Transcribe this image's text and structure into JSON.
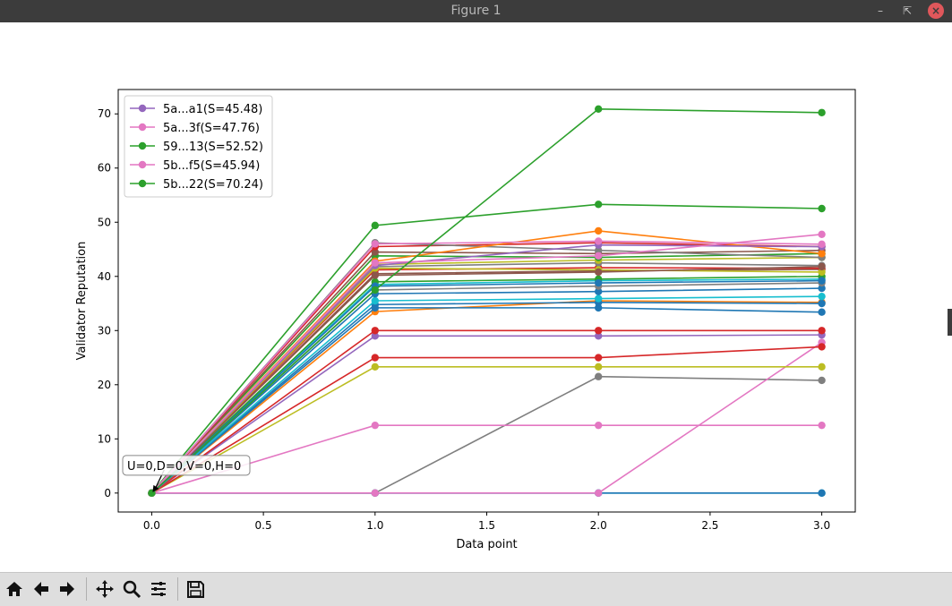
{
  "window": {
    "title": "Figure 1",
    "controls": [
      "minimize-icon",
      "restore-icon",
      "close-icon"
    ]
  },
  "toolbar": {
    "buttons": [
      "home-icon",
      "back-arrow-icon",
      "forward-arrow-icon",
      "pan-icon",
      "zoom-icon",
      "configure-subplots-icon",
      "save-icon"
    ]
  },
  "chart_data": {
    "type": "line",
    "xlabel": "Data point",
    "ylabel": "Validator Reputation",
    "xlim": [
      -0.15,
      3.15
    ],
    "ylim": [
      -3.5,
      74.5
    ],
    "xticks": [
      0.0,
      0.5,
      1.0,
      1.5,
      2.0,
      2.5,
      3.0
    ],
    "yticks": [
      0,
      10,
      20,
      30,
      40,
      50,
      60,
      70
    ],
    "xtick_labels": [
      "0.0",
      "0.5",
      "1.0",
      "1.5",
      "2.0",
      "2.5",
      "3.0"
    ],
    "ytick_labels": [
      "0",
      "10",
      "20",
      "30",
      "40",
      "50",
      "60",
      "70"
    ],
    "x": [
      0,
      1,
      2,
      3
    ],
    "legend_placement": "upper-left",
    "annotation": {
      "text": "U=0,D=0,V=0,H=0",
      "x": 0,
      "y": 0
    },
    "series": [
      {
        "values": [
          0,
          0,
          0,
          0
        ],
        "color": "#17becf"
      },
      {
        "values": [
          0,
          0,
          0,
          0
        ],
        "color": "#1f77b4"
      },
      {
        "values": [
          0,
          0,
          21.5,
          20.8
        ],
        "color": "#7f7f7f"
      },
      {
        "values": [
          0,
          12.5,
          12.5,
          12.5
        ],
        "color": "#e377c2"
      },
      {
        "values": [
          0,
          0,
          0,
          27.8
        ],
        "color": "#e377c2"
      },
      {
        "values": [
          0,
          23.3,
          23.3,
          23.3
        ],
        "color": "#bcbd22"
      },
      {
        "values": [
          0,
          25,
          25,
          27
        ],
        "color": "#d62728"
      },
      {
        "values": [
          0,
          29,
          29,
          29.2
        ],
        "color": "#9467bd"
      },
      {
        "values": [
          0,
          30,
          30,
          30
        ],
        "color": "#d62728"
      },
      {
        "values": [
          0,
          33.5,
          35.5,
          35.2
        ],
        "color": "#ff7f0e"
      },
      {
        "values": [
          0,
          34.2,
          34.2,
          33.4
        ],
        "color": "#1f77b4"
      },
      {
        "values": [
          0,
          34.8,
          35.2,
          35
        ],
        "color": "#1f77b4"
      },
      {
        "values": [
          0,
          35.5,
          35.9,
          36.3
        ],
        "color": "#17becf"
      },
      {
        "values": [
          0,
          36.8,
          37.2,
          37.8
        ],
        "color": "#1f77b4"
      },
      {
        "values": [
          0,
          37.5,
          38.2,
          38.8
        ],
        "color": "#7f7f7f"
      },
      {
        "values": [
          0,
          38.5,
          39.2,
          39.5
        ],
        "color": "#17becf"
      },
      {
        "values": [
          0,
          39,
          39.5,
          40
        ],
        "color": "#2ca02c"
      },
      {
        "values": [
          0,
          40.5,
          41,
          41.3
        ],
        "color": "#8c564b"
      },
      {
        "values": [
          0,
          41.2,
          41.6,
          41.5
        ],
        "color": "#d62728"
      },
      {
        "values": [
          0,
          41.8,
          42.5,
          42
        ],
        "color": "#7f7f7f"
      },
      {
        "values": [
          0,
          42.2,
          43,
          43.5
        ],
        "color": "#bcbd22"
      },
      {
        "values": [
          0,
          43.8,
          43.5,
          44.2
        ],
        "color": "#2ca02c"
      },
      {
        "values": [
          0,
          44.5,
          44.2,
          44.8
        ],
        "color": "#8c564b"
      },
      {
        "values": [
          0,
          45.5,
          46.2,
          45.5
        ],
        "color": "#d62728"
      },
      {
        "values": [
          0,
          46.2,
          44.8,
          43.5
        ],
        "color": "#7f7f7f"
      },
      {
        "values": [
          0,
          42.8,
          48.4,
          44.2
        ],
        "color": "#ff7f0e"
      },
      {
        "values": [
          0,
          41.5,
          41.2,
          40.8
        ],
        "color": "#bcbd22"
      },
      {
        "values": [
          0,
          40.2,
          40.8,
          41.8
        ],
        "color": "#8c564b"
      },
      {
        "values": [
          0,
          38.2,
          38.8,
          39.2
        ],
        "color": "#1f77b4"
      },
      {
        "name": "5a...a1(S=45.48)",
        "values": [
          0,
          42,
          45.8,
          45.48
        ],
        "color": "#9467bd"
      },
      {
        "name": "5a...3f(S=47.76)",
        "values": [
          0,
          42.5,
          43.8,
          47.76
        ],
        "color": "#e377c2"
      },
      {
        "name": "59...13(S=52.52)",
        "values": [
          0,
          49.4,
          53.3,
          52.52
        ],
        "color": "#2ca02c"
      },
      {
        "name": "5b...f5(S=45.94)",
        "values": [
          0,
          46,
          46.5,
          45.94
        ],
        "color": "#e377c2"
      },
      {
        "name": "5b...22(S=70.24)",
        "values": [
          0,
          37.5,
          70.9,
          70.24
        ],
        "color": "#2ca02c"
      }
    ]
  }
}
